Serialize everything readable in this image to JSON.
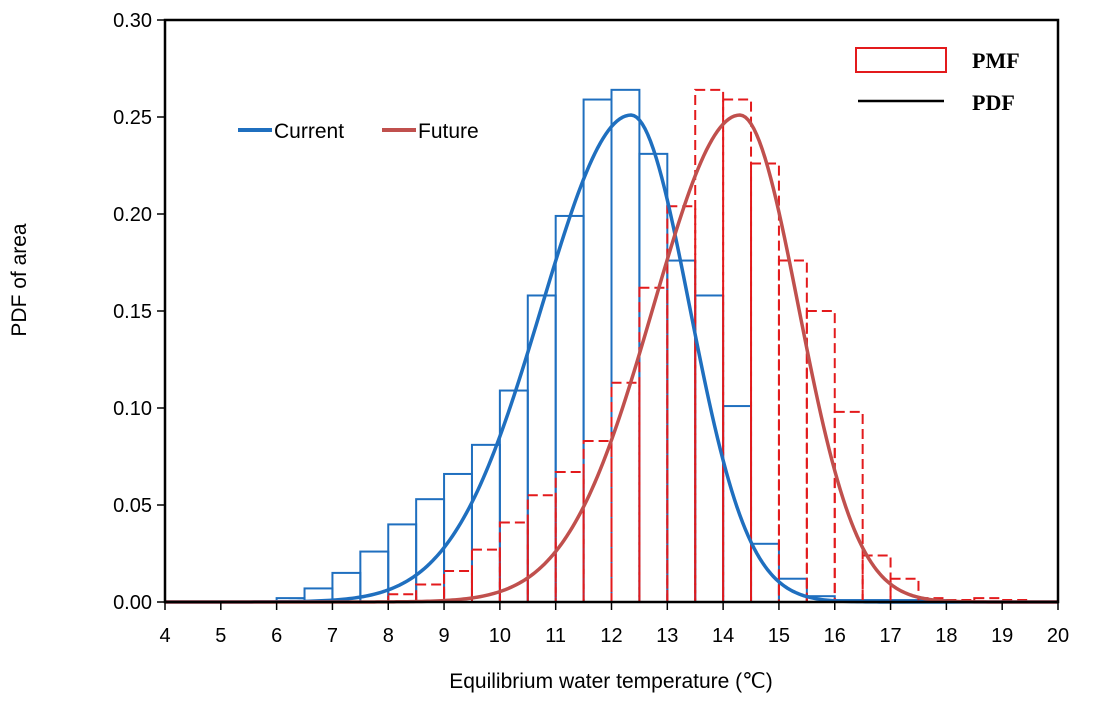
{
  "chart_data": {
    "type": "bar",
    "xlabel": "Equilibrium water temperature (℃)",
    "ylabel": "PDF of area",
    "xlim": [
      4,
      20
    ],
    "ylim": [
      0,
      0.3
    ],
    "xticks": [
      "4",
      "5",
      "6",
      "7",
      "8",
      "9",
      "10",
      "11",
      "12",
      "13",
      "14",
      "15",
      "16",
      "17",
      "18",
      "19",
      "20"
    ],
    "yticks": [
      "0.00",
      "0.05",
      "0.10",
      "0.15",
      "0.20",
      "0.25",
      "0.30"
    ],
    "bin_width": 0.5,
    "legend_series": [
      {
        "label": "Current",
        "color": "#1f6fbf"
      },
      {
        "label": "Future",
        "color": "#c0504d"
      }
    ],
    "legend_type": [
      {
        "label": "PMF",
        "color": "#e31a1c",
        "style": "box"
      },
      {
        "label": "PDF",
        "color": "#000000",
        "style": "line"
      }
    ],
    "pmf_current": {
      "bin_starts": [
        6,
        6.5,
        7,
        7.5,
        8,
        8.5,
        9,
        9.5,
        10,
        10.5,
        11,
        11.5,
        12,
        12.5,
        13,
        13.5,
        14,
        14.5,
        15,
        15.5,
        16,
        16.5,
        17,
        17.5
      ],
      "values": [
        0.002,
        0.007,
        0.015,
        0.026,
        0.04,
        0.053,
        0.066,
        0.081,
        0.109,
        0.158,
        0.199,
        0.259,
        0.264,
        0.231,
        0.176,
        0.158,
        0.101,
        0.03,
        0.012,
        0.003,
        0.001,
        0.001,
        0.001,
        0.001
      ]
    },
    "pmf_future": {
      "bin_starts": [
        8,
        8.5,
        9,
        9.5,
        10,
        10.5,
        11,
        11.5,
        12,
        12.5,
        13,
        13.5,
        14,
        14.5,
        15,
        15.5,
        16,
        16.5,
        17,
        17.5,
        18,
        18.5,
        19
      ],
      "values": [
        0.004,
        0.009,
        0.016,
        0.027,
        0.041,
        0.055,
        0.067,
        0.083,
        0.113,
        0.162,
        0.204,
        0.264,
        0.259,
        0.226,
        0.176,
        0.15,
        0.098,
        0.024,
        0.012,
        0.002,
        0.001,
        0.002,
        0.001
      ]
    },
    "pdf_current": {
      "mode": 12.35,
      "peak": 0.251,
      "sigma_left": 1.6,
      "sigma_right": 1.05
    },
    "pdf_future": {
      "mode": 14.3,
      "peak": 0.251,
      "sigma_left": 1.55,
      "sigma_right": 1.05
    },
    "grid": false
  }
}
